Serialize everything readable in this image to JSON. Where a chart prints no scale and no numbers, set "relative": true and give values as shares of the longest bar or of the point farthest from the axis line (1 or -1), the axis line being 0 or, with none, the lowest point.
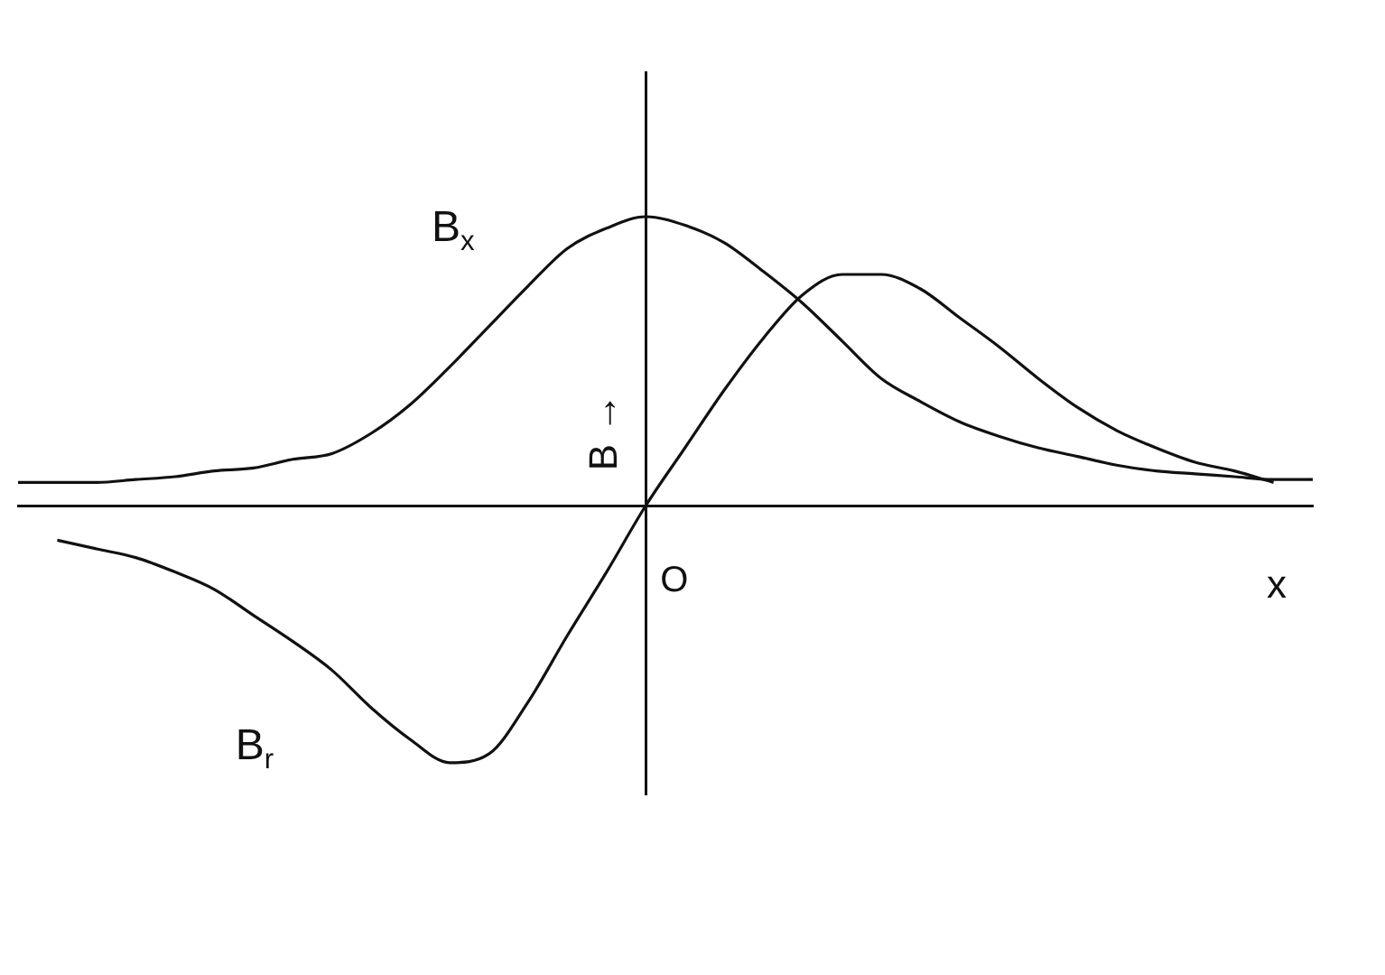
{
  "chart_data": {
    "type": "line",
    "relative": true,
    "xlabel": "x",
    "ylabel": "B →",
    "annotations": [
      "O"
    ],
    "grid": false,
    "legend": false,
    "marker": "none",
    "line_style": "solid",
    "categories": [
      null,
      null,
      null,
      null,
      null,
      null,
      null,
      null,
      null,
      null,
      null,
      null,
      null,
      null,
      null,
      null,
      null,
      null,
      null,
      null,
      null,
      null,
      null,
      null,
      null,
      null,
      null,
      null,
      null,
      null,
      null,
      null,
      null,
      null
    ],
    "series": [
      {
        "name": "B$_{x}$",
        "color": "#111111",
        "values": [
          0.08,
          0.08,
          0.08,
          0.09,
          0.1,
          0.12,
          0.13,
          0.16,
          0.18,
          0.25,
          0.35,
          0.48,
          0.62,
          0.76,
          0.89,
          0.96,
          1,
          0.97,
          0.91,
          0.81,
          0.7,
          0.57,
          0.44,
          0.36,
          0.29,
          0.24,
          0.2,
          0.17,
          0.14,
          0.12,
          0.11,
          0.1,
          0.09,
          0.09
        ]
      },
      {
        "name": "B$_{r}$",
        "color": "#111111",
        "values": [
          null,
          -0.12,
          -0.15,
          -0.18,
          -0.23,
          -0.29,
          -0.38,
          -0.47,
          -0.57,
          -0.7,
          -0.81,
          -0.89,
          -0.86,
          -0.68,
          -0.45,
          -0.23,
          0,
          0.2,
          0.4,
          0.58,
          0.73,
          0.8,
          0.8,
          0.75,
          0.65,
          0.55,
          0.44,
          0.34,
          0.26,
          0.2,
          0.15,
          0.12,
          0.08,
          null
        ]
      }
    ]
  }
}
